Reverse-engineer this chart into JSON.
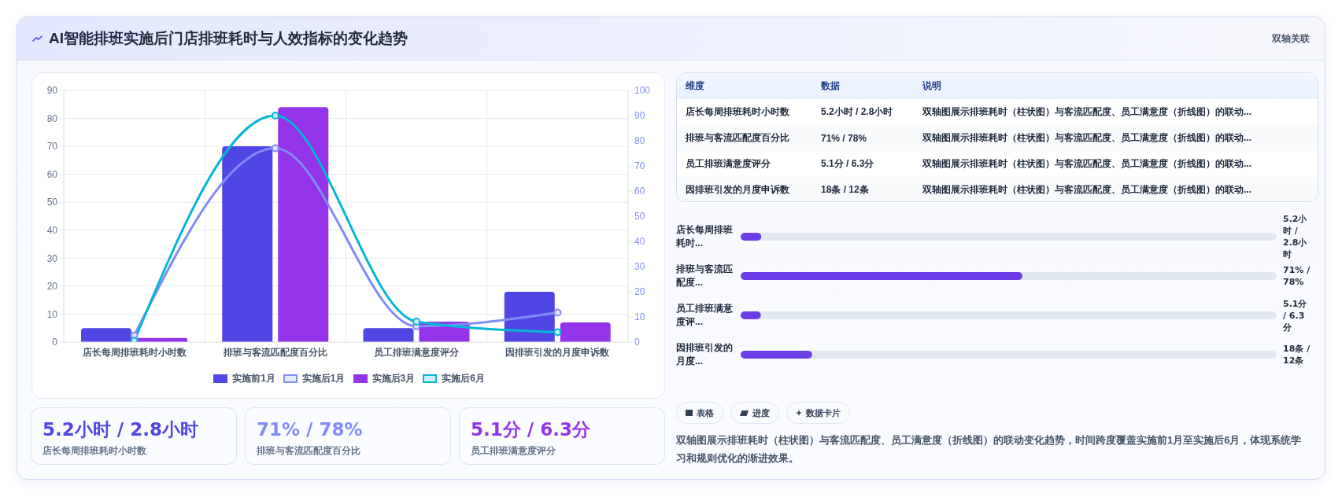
{
  "chart_data": [
    {
      "type": "bar",
      "title": "AI智能排班实施后门店排班耗时与人效指标的变化趋势",
      "categories": [
        "店长每周排班耗时小时数",
        "排班与客流匹配度百分比",
        "员工排班满意度评分",
        "因排班引发的月度申诉数"
      ],
      "series": [
        {
          "name": "实施前1月",
          "type": "bar",
          "color": "#4f46e5",
          "values": [
            5,
            70,
            5,
            18
          ]
        },
        {
          "name": "实施后1月",
          "type": "line",
          "axis": "y2",
          "color": "#818cf8",
          "values": [
            2.6,
            77,
            6.3,
            11.7
          ]
        },
        {
          "name": "实施后3月",
          "type": "bar",
          "color": "#9333ea",
          "values": [
            1.5,
            84,
            7.3,
            7
          ]
        },
        {
          "name": "实施后6月",
          "type": "line",
          "axis": "y2",
          "color": "#06b6d4",
          "values": [
            0.5,
            90,
            8.1,
            3.9
          ]
        }
      ],
      "ylim": [
        0,
        90
      ],
      "yticks": [
        0,
        10,
        20,
        30,
        40,
        50,
        60,
        70,
        80,
        90
      ],
      "y2lim": [
        0,
        100
      ],
      "y2ticks": [
        0,
        10,
        20,
        30,
        40,
        50,
        60,
        70,
        80,
        90,
        100
      ],
      "grid": true,
      "legend": "bottom",
      "marker": "circle"
    },
    {
      "type": "other",
      "title": "双轴关联",
      "categories": [
        "维度",
        "数据",
        "说明"
      ],
      "cell_labels": [
        [
          "店长每周排班耗时小时数",
          "5.2小时 / 2.8小时",
          "双轴图展示排班耗时（柱状图）与客流匹配度、员工满意度（折线图）的联动..."
        ],
        [
          "排班与客流匹配度百分比",
          "71% / 78%",
          "双轴图展示排班耗时（柱状图）与客流匹配度、员工满意度（折线图）的联动..."
        ],
        [
          "员工排班满意度评分",
          "5.1分 / 6.3分",
          "双轴图展示排班耗时（柱状图）与客流匹配度、员工满意度（折线图）的联动..."
        ],
        [
          "因排班引发的月度申诉数",
          "18条 / 12条",
          "双轴图展示排班耗时（柱状图）与客流匹配度、员工满意度（折线图）的联动..."
        ]
      ]
    },
    {
      "type": "bar",
      "orientation": "horizontal",
      "tick_labels": false,
      "categories": [
        "店长每周排班耗时...",
        "排班与客流匹配度...",
        "员工排班满意度评...",
        "因排班引发的月度..."
      ],
      "values": [
        5.2,
        71,
        5.1,
        18
      ],
      "value_labels": [
        "5.2小时 / 2.8小时",
        "71% / 78%",
        "5.1分 / 6.3分",
        "18条 / 12条"
      ],
      "color": "#6d3ee8"
    },
    {
      "type": "other",
      "title": "5.2小时 / 2.8小时",
      "subtitle": "店长每周排班耗时小时数",
      "color": "#4f46e5"
    },
    {
      "type": "other",
      "title": "71% / 78%",
      "subtitle": "排班与客流匹配度百分比",
      "color": "#818cf8"
    },
    {
      "type": "other",
      "title": "5.1分 / 6.3分",
      "subtitle": "员工排班满意度评分",
      "color": "#9333ea"
    },
    {
      "type": "other",
      "categories": [
        "表格",
        "进度",
        "数据卡片"
      ],
      "annotations": [
        "双轴图展示排班耗时（柱状图）与客流匹配度、员工满意度（折线图）的联动变化趋势，时间跨度覆盖实施前1月至实施后6月，体现系统学习和规则优化的渐进效果。"
      ]
    }
  ]
}
